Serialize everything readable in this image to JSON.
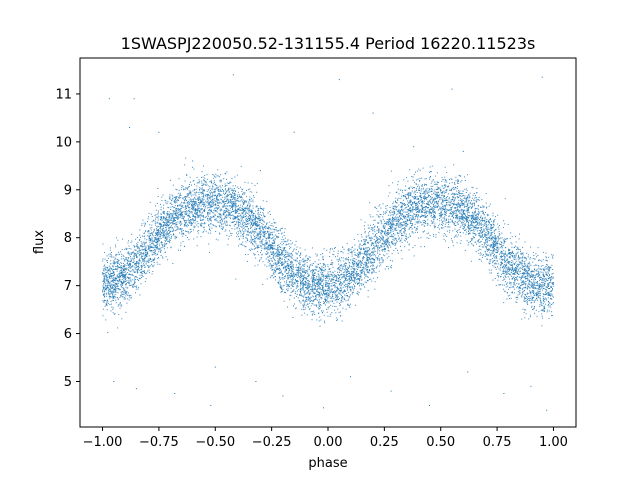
{
  "chart_data": {
    "type": "scatter",
    "title": "1SWASPJ220050.52-131155.4 Period 16220.11523s",
    "xlabel": "phase",
    "ylabel": "flux",
    "xlim": [
      -1.1,
      1.1
    ],
    "ylim": [
      4.05,
      11.75
    ],
    "xticks": [
      -1.0,
      -0.75,
      -0.5,
      -0.25,
      0.0,
      0.25,
      0.5,
      0.75,
      1.0
    ],
    "xtick_labels": [
      "−1.00",
      "−0.75",
      "−0.50",
      "−0.25",
      "0.00",
      "0.25",
      "0.50",
      "0.75",
      "1.00"
    ],
    "yticks": [
      5,
      6,
      7,
      8,
      9,
      10,
      11
    ],
    "ytick_labels": [
      "5",
      "6",
      "7",
      "8",
      "9",
      "10",
      "11"
    ],
    "grid": false,
    "legend": "none",
    "series": [
      {
        "color": "#1f77b4",
        "curve": {
          "phase": [
            -1.0,
            -0.9,
            -0.8,
            -0.7,
            -0.6,
            -0.5,
            -0.4,
            -0.3,
            -0.2,
            -0.1,
            0.0,
            0.1,
            0.2,
            0.3,
            0.4,
            0.5,
            0.6,
            0.7,
            0.8,
            0.9,
            1.0
          ],
          "flux": [
            7.05,
            7.2,
            7.75,
            8.35,
            8.65,
            8.7,
            8.55,
            8.1,
            7.45,
            7.05,
            7.0,
            7.2,
            7.75,
            8.35,
            8.65,
            8.7,
            8.55,
            8.1,
            7.45,
            7.05,
            7.0
          ],
          "scatter": 0.3
        },
        "outliers": [
          [
            -0.97,
            10.9
          ],
          [
            -0.88,
            10.3
          ],
          [
            -0.86,
            10.9
          ],
          [
            -0.75,
            10.2
          ],
          [
            -0.6,
            9.6
          ],
          [
            -0.42,
            11.4
          ],
          [
            -0.3,
            9.4
          ],
          [
            -0.15,
            10.2
          ],
          [
            0.05,
            11.3
          ],
          [
            0.2,
            10.6
          ],
          [
            0.38,
            9.9
          ],
          [
            0.6,
            9.8
          ],
          [
            0.95,
            11.35
          ],
          [
            0.55,
            11.1
          ],
          [
            -0.95,
            5.0
          ],
          [
            -0.85,
            4.85
          ],
          [
            -0.68,
            4.75
          ],
          [
            -0.52,
            4.5
          ],
          [
            -0.5,
            5.3
          ],
          [
            -0.32,
            5.0
          ],
          [
            -0.2,
            4.7
          ],
          [
            -0.02,
            4.45
          ],
          [
            0.1,
            5.1
          ],
          [
            0.28,
            4.8
          ],
          [
            0.45,
            4.5
          ],
          [
            0.62,
            5.2
          ],
          [
            0.78,
            4.75
          ],
          [
            0.9,
            4.9
          ],
          [
            0.97,
            4.4
          ]
        ]
      }
    ]
  }
}
